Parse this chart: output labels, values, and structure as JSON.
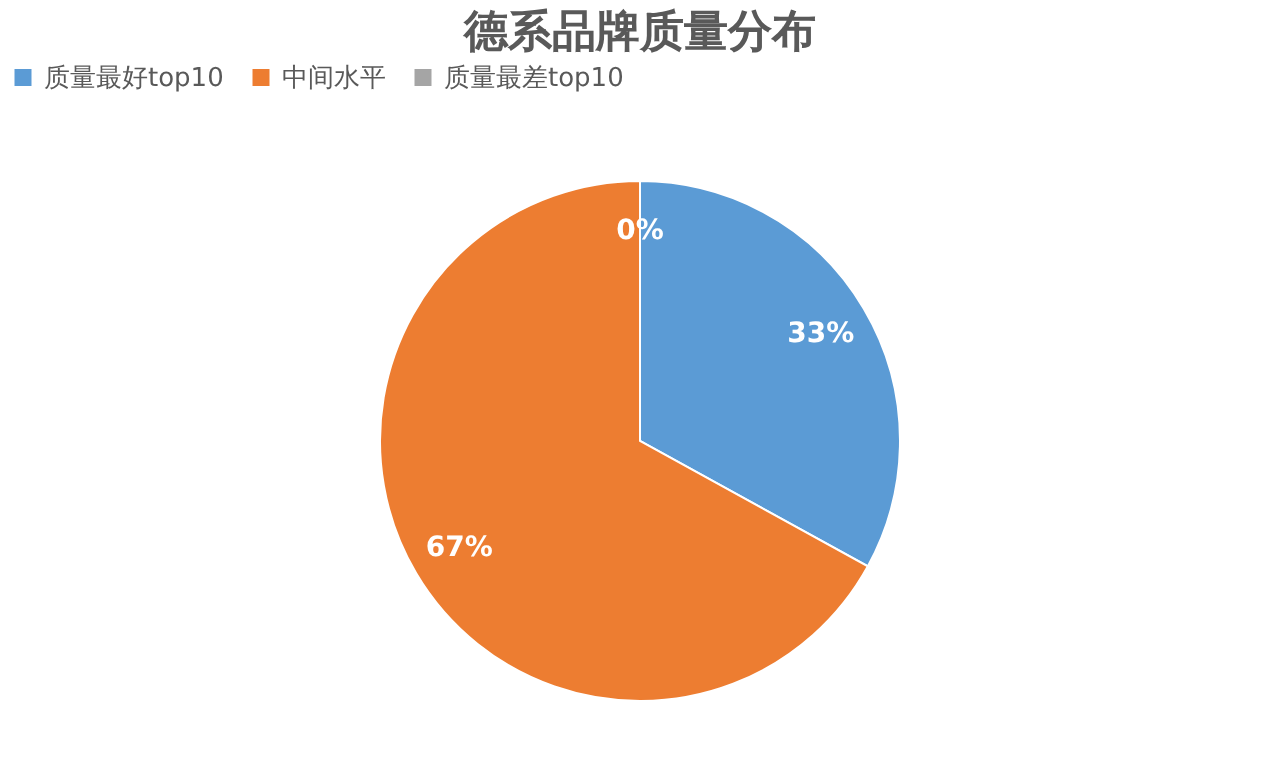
{
  "chart_data": {
    "type": "pie",
    "title": "德系品牌质量分布",
    "categories": [
      "质量最好top10",
      "中间水平",
      "质量最差top10"
    ],
    "values": [
      33,
      67,
      0
    ],
    "colors": [
      "#5b9bd5",
      "#ed7d31",
      "#a5a5a5"
    ],
    "value_labels": [
      "33%",
      "67%",
      "0%"
    ],
    "legend": "top"
  }
}
